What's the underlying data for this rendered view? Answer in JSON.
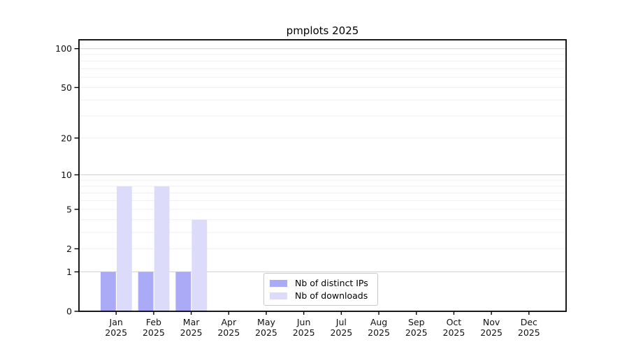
{
  "chart_data": {
    "type": "bar",
    "title": "pmplots 2025",
    "categories": [
      "Jan",
      "Feb",
      "Mar",
      "Apr",
      "May",
      "Jun",
      "Jul",
      "Aug",
      "Sep",
      "Oct",
      "Nov",
      "Dec"
    ],
    "x_year_label": "2025",
    "series": [
      {
        "name": "Nb of distinct IPs",
        "color": "#aaaaf6",
        "values": [
          1,
          1,
          1,
          0,
          0,
          0,
          0,
          0,
          0,
          0,
          0,
          0
        ]
      },
      {
        "name": "Nb of downloads",
        "color": "#dcdcfa",
        "values": [
          8,
          8,
          4,
          0,
          0,
          0,
          0,
          0,
          0,
          0,
          0,
          0
        ]
      }
    ],
    "y_scale": "log10(1+y)",
    "ylim": [
      0,
      117
    ],
    "y_ticks": [
      0,
      1,
      2,
      5,
      10,
      20,
      50,
      100
    ],
    "y_gridlines_major": [
      1,
      10,
      100
    ],
    "y_gridlines_minor": [
      2,
      3,
      4,
      5,
      6,
      7,
      8,
      9,
      20,
      30,
      40,
      50,
      60,
      70,
      80,
      90
    ],
    "grid": true,
    "legend_position": "bottom-center"
  },
  "colors": {
    "spine": "#000000",
    "grid_major": "#d5d5d5",
    "grid_minor": "#efefef",
    "tick_text": "#111111",
    "legend_border": "#c9c9c9"
  }
}
